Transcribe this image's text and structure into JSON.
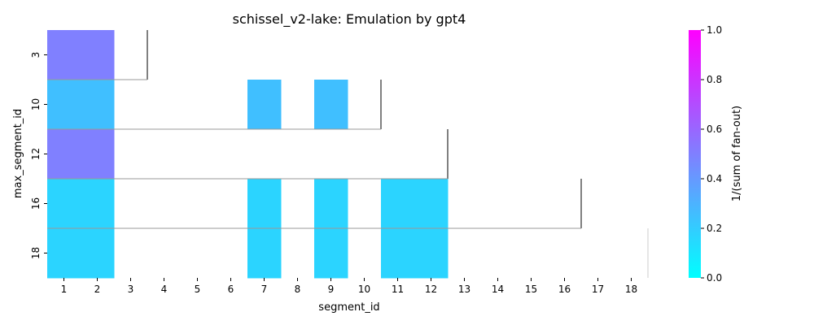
{
  "chart_data": {
    "type": "heatmap",
    "title": "schissel_v2-lake: Emulation by gpt4",
    "xlabel": "segment_id",
    "ylabel": "max_segment_id",
    "x_categories": [
      "1",
      "2",
      "3",
      "4",
      "5",
      "6",
      "7",
      "8",
      "9",
      "10",
      "11",
      "12",
      "13",
      "14",
      "15",
      "16",
      "17",
      "18"
    ],
    "y_categories": [
      "3",
      "10",
      "12",
      "16",
      "18"
    ],
    "colorbar": {
      "label": "1/(sum of fan-out)",
      "range": [
        0.0,
        1.0
      ],
      "ticks": [
        "0.0",
        "0.2",
        "0.4",
        "0.6",
        "0.8",
        "1.0"
      ],
      "colormap": "cool",
      "low_color": "#00ffff",
      "high_color": "#ff00ff"
    },
    "cells": [
      {
        "y": "3",
        "x": "1",
        "value": 0.5
      },
      {
        "y": "3",
        "x": "2",
        "value": 0.5
      },
      {
        "y": "10",
        "x": "1",
        "value": 0.25
      },
      {
        "y": "10",
        "x": "2",
        "value": 0.25
      },
      {
        "y": "10",
        "x": "7",
        "value": 0.25
      },
      {
        "y": "10",
        "x": "9",
        "value": 0.25
      },
      {
        "y": "12",
        "x": "1",
        "value": 0.5
      },
      {
        "y": "12",
        "x": "2",
        "value": 0.5
      },
      {
        "y": "16",
        "x": "1",
        "value": 0.167
      },
      {
        "y": "16",
        "x": "2",
        "value": 0.167
      },
      {
        "y": "16",
        "x": "7",
        "value": 0.167
      },
      {
        "y": "16",
        "x": "9",
        "value": 0.167
      },
      {
        "y": "16",
        "x": "11",
        "value": 0.167
      },
      {
        "y": "16",
        "x": "12",
        "value": 0.167
      },
      {
        "y": "18",
        "x": "1",
        "value": 0.167
      },
      {
        "y": "18",
        "x": "2",
        "value": 0.167
      },
      {
        "y": "18",
        "x": "7",
        "value": 0.167
      },
      {
        "y": "18",
        "x": "9",
        "value": 0.167
      },
      {
        "y": "18",
        "x": "11",
        "value": 0.167
      },
      {
        "y": "18",
        "x": "12",
        "value": 0.167
      }
    ],
    "boundaries": [
      {
        "y": "3",
        "x_end": "3"
      },
      {
        "y": "10",
        "x_end": "10"
      },
      {
        "y": "12",
        "x_end": "12"
      },
      {
        "y": "16",
        "x_end": "16"
      },
      {
        "y": "18",
        "x_end": "18"
      }
    ]
  }
}
